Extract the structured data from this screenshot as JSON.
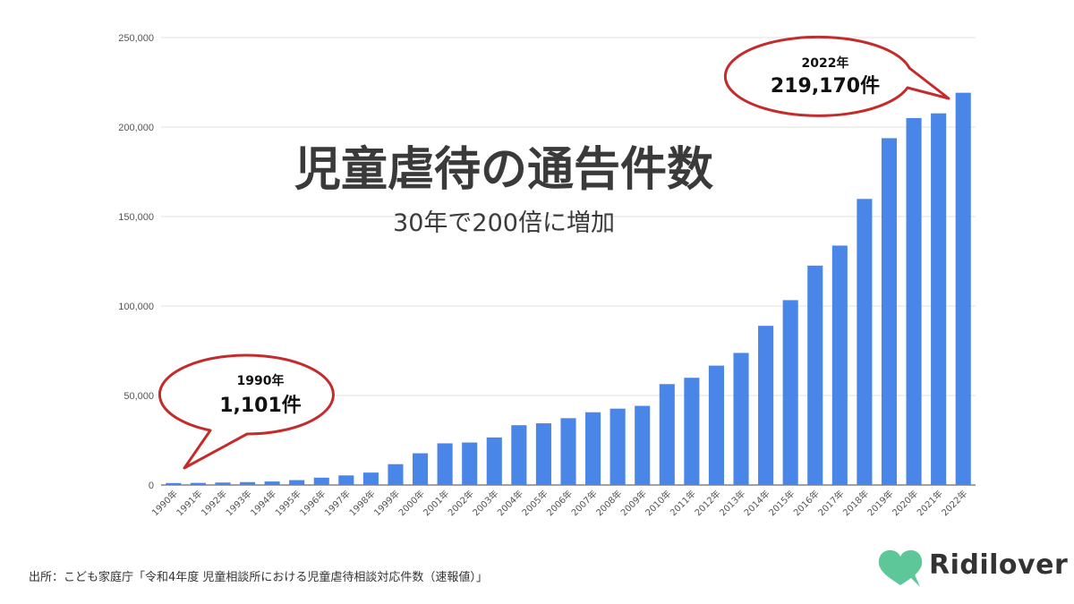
{
  "chart_data": {
    "type": "bar",
    "title": "児童虐待の通告件数",
    "subtitle": "30年で200倍に増加",
    "categories": [
      "1990年",
      "1991年",
      "1992年",
      "1993年",
      "1994年",
      "1995年",
      "1996年",
      "1997年",
      "1998年",
      "1999年",
      "2000年",
      "2001年",
      "2002年",
      "2003年",
      "2004年",
      "2005年",
      "2006年",
      "2007年",
      "2008年",
      "2009年",
      "2010年",
      "2011年",
      "2012年",
      "2013年",
      "2014年",
      "2015年",
      "2016年",
      "2017年",
      "2018年",
      "2019年",
      "2020年",
      "2021年",
      "2022年"
    ],
    "values": [
      1101,
      1171,
      1372,
      1611,
      1961,
      2722,
      4102,
      5352,
      6932,
      11631,
      17725,
      23274,
      23738,
      26569,
      33408,
      34472,
      37323,
      40639,
      42664,
      44211,
      56384,
      59919,
      66701,
      73802,
      88931,
      103286,
      122575,
      133778,
      159838,
      193780,
      205044,
      207660,
      219170
    ],
    "ylim": [
      0,
      250000
    ],
    "yticks": [
      "0",
      "50,000",
      "100,000",
      "150,000",
      "200,000",
      "250,000"
    ],
    "grid": true,
    "bar_color": "#4a86e8",
    "annotations": [
      {
        "year": "1990年",
        "value": "1,101件"
      },
      {
        "year": "2022年",
        "value": "219,170件"
      }
    ]
  },
  "source": "出所：こども家庭庁「令和4年度 児童相談所における児童虐待相談対応件数（速報値）」",
  "brand": {
    "name": "Ridilover",
    "color": "#5ec79a"
  }
}
